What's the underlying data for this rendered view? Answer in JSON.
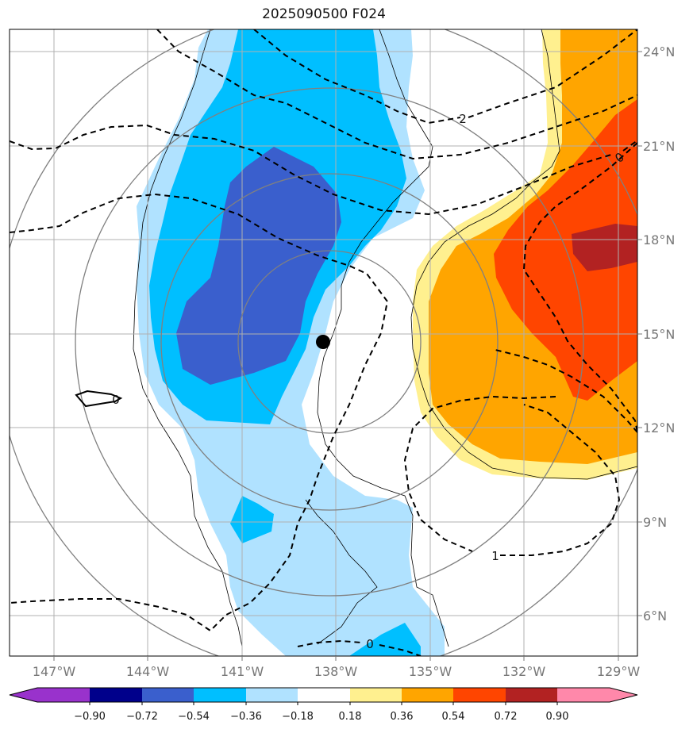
{
  "title": "2025090500 F024",
  "map": {
    "lon_ticks": [
      "147°W",
      "144°W",
      "141°W",
      "138°W",
      "135°W",
      "132°W",
      "129°W"
    ],
    "lat_ticks": [
      "24°N",
      "21°N",
      "18°N",
      "15°N",
      "12°N",
      "9°N",
      "6°N"
    ],
    "contour_labels": [
      "2",
      "0",
      "1",
      "0",
      "0"
    ],
    "center_marker": "storm-center-dot"
  },
  "colorbar": {
    "ticks": [
      "−0.90",
      "−0.72",
      "−0.54",
      "−0.36",
      "−0.18",
      "0.18",
      "0.36",
      "0.54",
      "0.72",
      "0.90"
    ],
    "colors": [
      "#9932cc",
      "#00008b",
      "#3a5fcd",
      "#00bfff",
      "#b0e2ff",
      "#ffffff",
      "#fff08f",
      "#ffa500",
      "#ff4500",
      "#b22222",
      "#ff88aa"
    ]
  }
}
